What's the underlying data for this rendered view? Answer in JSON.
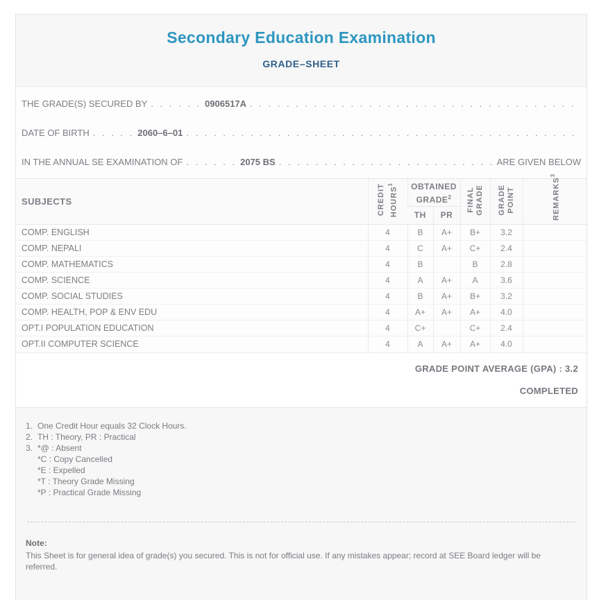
{
  "header": {
    "title": "Secondary Education Examination",
    "subtitle": "GRADE–SHEET"
  },
  "info": {
    "dot_leader": ". ",
    "lines": [
      {
        "label": "THE GRADE(S) SECURED BY",
        "leader": ". . . . . .",
        "value": "0906517A",
        "suffix": ""
      },
      {
        "label": "DATE OF BIRTH",
        "leader": ". . . . .",
        "value": "2060–6–01",
        "suffix": ""
      },
      {
        "label": "IN THE ANNUAL SE EXAMINATION OF",
        "leader": ". . . . . .",
        "value": "2075 BS",
        "suffix": "ARE GIVEN BELOW"
      }
    ]
  },
  "table": {
    "headers": {
      "subjects": "SUBJECTS",
      "credit_l1": "CREDIT",
      "credit_l2": "HOURS",
      "credit_sup": "1",
      "obtained_l1": "OBTAINED",
      "obtained_l2": "GRADE",
      "obtained_sup": "2",
      "th": "TH",
      "pr": "PR",
      "final_l1": "FINAL",
      "final_l2": "GRADE",
      "point_l1": "GRADE",
      "point_l2": "POINT",
      "remarks": "REMARKS",
      "remarks_sup": "3"
    },
    "rows": [
      {
        "subject": "COMP. ENGLISH",
        "credit": "4",
        "th": "B",
        "pr": "A+",
        "final": "B+",
        "point": "3.2",
        "remarks": ""
      },
      {
        "subject": "COMP. NEPALI",
        "credit": "4",
        "th": "C",
        "pr": "A+",
        "final": "C+",
        "point": "2.4",
        "remarks": ""
      },
      {
        "subject": "COMP. MATHEMATICS",
        "credit": "4",
        "th": "B",
        "pr": "",
        "final": "B",
        "point": "2.8",
        "remarks": ""
      },
      {
        "subject": "COMP. SCIENCE",
        "credit": "4",
        "th": "A",
        "pr": "A+",
        "final": "A",
        "point": "3.6",
        "remarks": ""
      },
      {
        "subject": "COMP. SOCIAL STUDIES",
        "credit": "4",
        "th": "B",
        "pr": "A+",
        "final": "B+",
        "point": "3.2",
        "remarks": ""
      },
      {
        "subject": "COMP. HEALTH, POP & ENV EDU",
        "credit": "4",
        "th": "A+",
        "pr": "A+",
        "final": "A+",
        "point": "4.0",
        "remarks": ""
      },
      {
        "subject": "OPT.I POPULATION EDUCATION",
        "credit": "4",
        "th": "C+",
        "pr": "",
        "final": "C+",
        "point": "2.4",
        "remarks": ""
      },
      {
        "subject": "OPT.II COMPUTER SCIENCE",
        "credit": "4",
        "th": "A",
        "pr": "A+",
        "final": "A+",
        "point": "4.0",
        "remarks": ""
      }
    ]
  },
  "summary": {
    "gpa_label": "GRADE POINT AVERAGE (GPA) :",
    "gpa_value": "3.2",
    "status": "COMPLETED"
  },
  "footnotes": [
    {
      "marker": "1.",
      "text": "One Credit Hour equals 32 Clock Hours."
    },
    {
      "marker": "2.",
      "text": "TH : Theory, PR : Practical"
    },
    {
      "marker": "3.",
      "text": "*@ : Absent"
    },
    {
      "marker": "",
      "text": "*C : Copy Cancelled"
    },
    {
      "marker": "",
      "text": "*E : Expelled"
    },
    {
      "marker": "",
      "text": "*T : Theory Grade Missing"
    },
    {
      "marker": "",
      "text": "*P : Practical Grade Missing"
    }
  ],
  "note": {
    "title": "Note:",
    "text": "This Sheet is for general idea of grade(s) you secured. This is not for official use. If any mistakes appear; record at SEE Board ledger will be referred."
  },
  "colors": {
    "title_blue": "#2d96c0",
    "subtitle_navy": "#2e5f8a",
    "text_gray": "#7d7d85",
    "section_gray": "#f7f7f7"
  }
}
